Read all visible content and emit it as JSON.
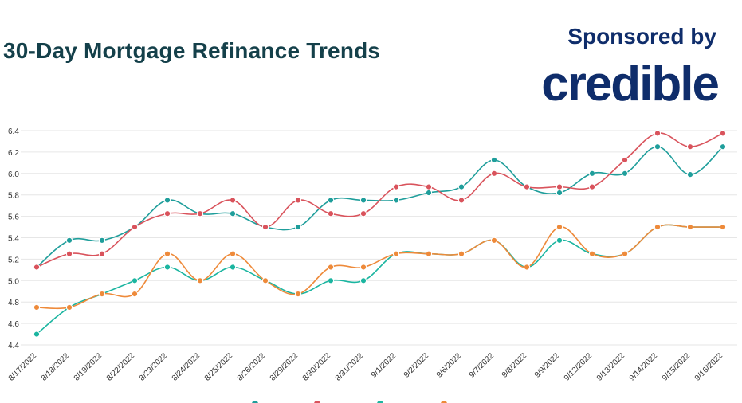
{
  "header": {
    "title": "30-Day Mortgage Refinance Trends",
    "sponsor_label": "Sponsored by",
    "sponsor_logo": "credible"
  },
  "chart_data": {
    "type": "line",
    "title": "30-Day Mortgage Refinance Trends",
    "xlabel": "",
    "ylabel": "",
    "ylim": [
      4.4,
      6.4
    ],
    "yticks": [
      4.4,
      4.6,
      4.8,
      5.0,
      5.2,
      5.4,
      5.6,
      5.8,
      6.0,
      6.2,
      6.4
    ],
    "grid": true,
    "legend_position": "bottom",
    "categories": [
      "8/17/2022",
      "8/18/2022",
      "8/19/2022",
      "8/22/2022",
      "8/23/2022",
      "8/24/2022",
      "8/25/2022",
      "8/26/2022",
      "8/29/2022",
      "8/30/2022",
      "8/31/2022",
      "9/1/2022",
      "9/2/2022",
      "9/6/2022",
      "9/7/2022",
      "9/8/2022",
      "9/9/2022",
      "9/12/2022",
      "9/13/2022",
      "9/14/2022",
      "9/15/2022",
      "9/16/2022"
    ],
    "series": [
      {
        "color": "#1f9e9b",
        "values": [
          5.125,
          5.375,
          5.375,
          5.5,
          5.75,
          5.625,
          5.625,
          5.5,
          5.5,
          5.75,
          5.75,
          5.75,
          5.82,
          5.875,
          6.125,
          5.875,
          5.82,
          6.0,
          6.0,
          6.25,
          5.99,
          6.25
        ]
      },
      {
        "color": "#d9535c",
        "values": [
          5.125,
          5.25,
          5.25,
          5.5,
          5.625,
          5.625,
          5.75,
          5.5,
          5.75,
          5.625,
          5.625,
          5.875,
          5.875,
          5.75,
          6.0,
          5.875,
          5.875,
          5.875,
          6.125,
          6.375,
          6.25,
          6.375
        ]
      },
      {
        "color": "#1bb5a0",
        "values": [
          4.5,
          4.75,
          4.875,
          5.0,
          5.125,
          5.0,
          5.125,
          5.0,
          4.875,
          5.0,
          5.0,
          5.25,
          5.25,
          5.25,
          5.375,
          5.125,
          5.375,
          5.25,
          5.25,
          5.5,
          5.5,
          5.5
        ]
      },
      {
        "color": "#ee8a3a",
        "values": [
          4.75,
          4.75,
          4.875,
          4.875,
          5.25,
          5.0,
          5.25,
          5.0,
          4.875,
          5.125,
          5.125,
          5.25,
          5.25,
          5.25,
          5.375,
          5.125,
          5.5,
          5.25,
          5.25,
          5.5,
          5.5,
          5.5
        ]
      }
    ]
  }
}
